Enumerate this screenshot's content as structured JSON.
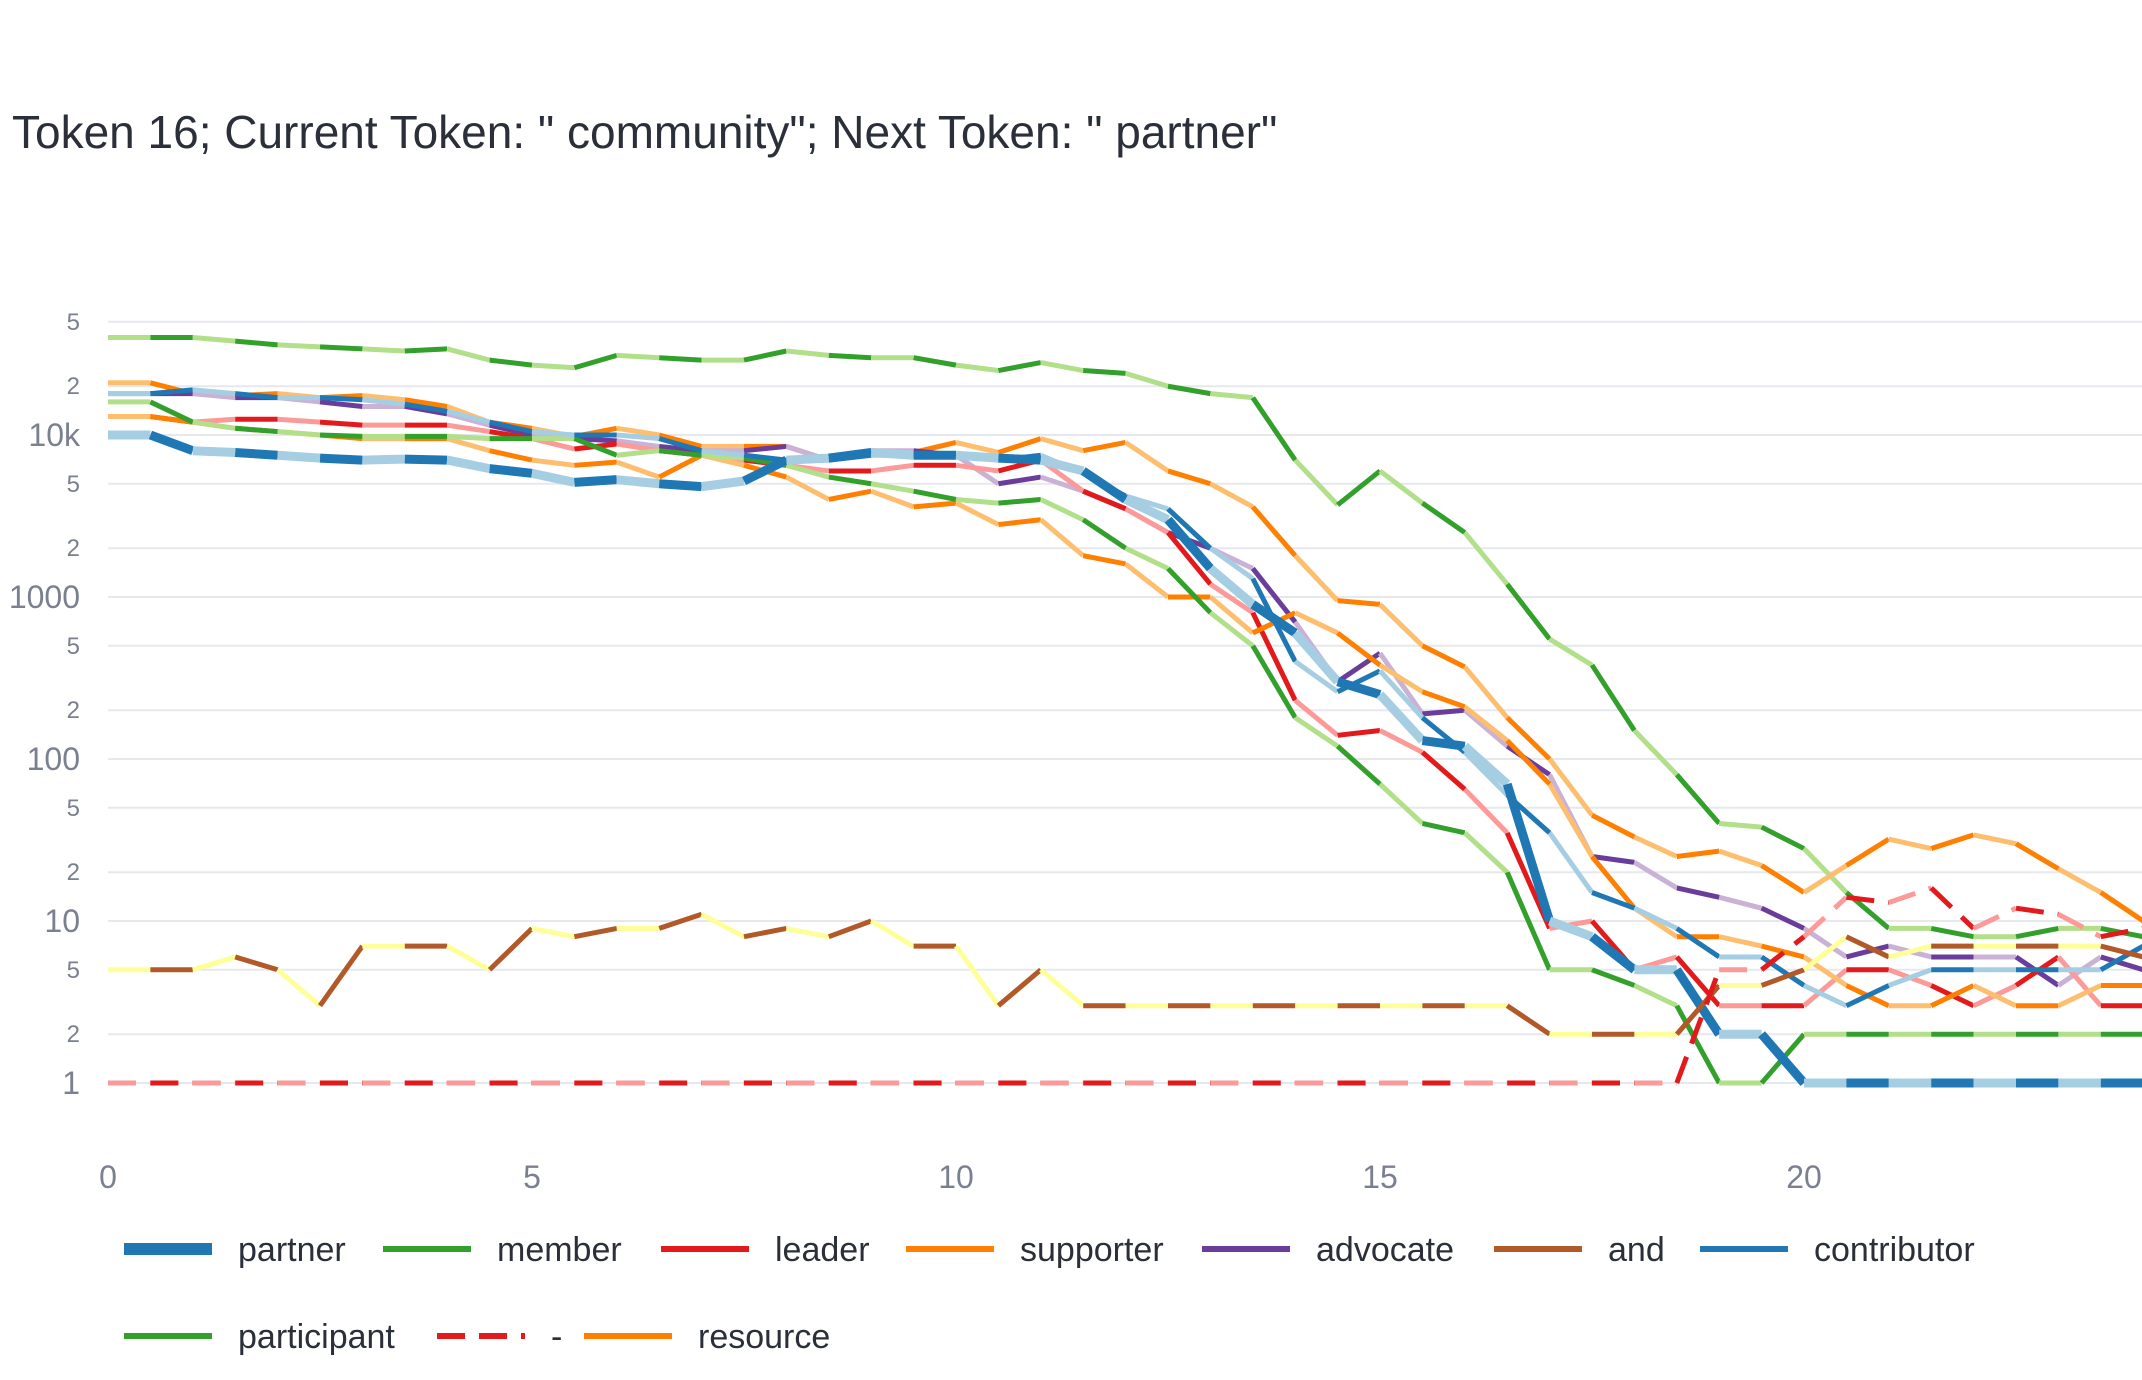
{
  "chart_data": {
    "type": "line",
    "title": "Token 16; Current Token: \" community\"; Next Token: \" partner\"",
    "xlabel": "",
    "ylabel": "",
    "yscale": "log",
    "xlim": [
      0,
      24
    ],
    "ylim": [
      1,
      50000
    ],
    "x_ticks": [
      0,
      5,
      10,
      15,
      20
    ],
    "y_major_ticks": [
      {
        "value": 1,
        "label": "1"
      },
      {
        "value": 10,
        "label": "10"
      },
      {
        "value": 100,
        "label": "100"
      },
      {
        "value": 1000,
        "label": "1000"
      },
      {
        "value": 10000,
        "label": "10k"
      }
    ],
    "y_minor_ticks": [
      {
        "value": 2,
        "label": "2"
      },
      {
        "value": 5,
        "label": "5"
      },
      {
        "value": 20,
        "label": "2"
      },
      {
        "value": 50,
        "label": "5"
      },
      {
        "value": 200,
        "label": "2"
      },
      {
        "value": 500,
        "label": "5"
      },
      {
        "value": 2000,
        "label": "2"
      },
      {
        "value": 5000,
        "label": "5"
      },
      {
        "value": 20000,
        "label": "2"
      },
      {
        "value": 50000,
        "label": "5"
      }
    ],
    "grid": true,
    "legend_position": "bottom",
    "x": [
      0,
      0.5,
      1,
      1.5,
      2,
      2.5,
      3,
      3.5,
      4,
      4.5,
      5,
      5.5,
      6,
      6.5,
      7,
      7.5,
      8,
      8.5,
      9,
      9.5,
      10,
      10.5,
      11,
      11.5,
      12,
      12.5,
      13,
      13.5,
      14,
      14.5,
      15,
      15.5,
      16,
      16.5,
      17,
      17.5,
      18,
      18.5,
      19,
      19.5,
      20,
      20.5,
      21,
      21.5,
      22,
      22.5,
      23,
      23.5,
      24
    ],
    "series": [
      {
        "name": "partner",
        "color": "#1f78b4",
        "light_color": "#a6cee3",
        "width": 9,
        "dashed": false,
        "values": [
          10000,
          10000,
          8000,
          7800,
          7500,
          7200,
          7000,
          7100,
          7000,
          6200,
          5800,
          5100,
          5300,
          5000,
          4800,
          5200,
          7000,
          7200,
          7800,
          7500,
          7500,
          7200,
          7000,
          6000,
          4000,
          3000,
          1500,
          900,
          600,
          300,
          250,
          130,
          120,
          70,
          10,
          8,
          5,
          5,
          2,
          2,
          1,
          1,
          1,
          1,
          1,
          1,
          1,
          1,
          1
        ]
      },
      {
        "name": "member",
        "color": "#33a02c",
        "light_color": "#b2df8a",
        "width": 5,
        "dashed": false,
        "values": [
          16000,
          16000,
          12000,
          11000,
          10500,
          10000,
          9800,
          9800,
          9800,
          9500,
          9500,
          9500,
          7500,
          8000,
          7500,
          7200,
          6500,
          5500,
          5000,
          4500,
          4000,
          3800,
          4000,
          3000,
          2000,
          1500,
          800,
          500,
          180,
          120,
          70,
          40,
          35,
          20,
          5,
          5,
          4,
          3,
          1,
          1,
          2,
          2,
          2,
          2,
          2,
          2,
          2,
          2,
          2
        ]
      },
      {
        "name": "leader",
        "color": "#e31a1c",
        "light_color": "#fb9a99",
        "width": 5,
        "dashed": false,
        "values": [
          13000,
          13000,
          12000,
          12500,
          12500,
          12000,
          11500,
          11500,
          11500,
          10500,
          9500,
          8200,
          8800,
          8000,
          7500,
          7000,
          6500,
          6000,
          6000,
          6500,
          6500,
          6000,
          7000,
          4500,
          3500,
          2500,
          1200,
          800,
          230,
          140,
          150,
          110,
          65,
          35,
          9,
          10,
          5,
          6,
          3,
          3,
          3,
          5,
          5,
          4,
          3,
          4,
          6,
          3,
          3
        ]
      },
      {
        "name": "supporter",
        "color": "#ff7f00",
        "light_color": "#fdbf6f",
        "width": 5,
        "dashed": false,
        "values": [
          13000,
          13000,
          12000,
          11000,
          10500,
          10000,
          9500,
          9500,
          9500,
          8000,
          7000,
          6500,
          6800,
          5500,
          7500,
          6500,
          5500,
          4000,
          4500,
          3600,
          3800,
          2800,
          3000,
          1800,
          1600,
          1000,
          1000,
          600,
          800,
          600,
          380,
          260,
          210,
          130,
          70,
          25,
          12,
          8,
          8,
          7,
          6,
          4,
          3,
          3,
          4,
          3,
          3,
          4,
          4
        ]
      },
      {
        "name": "advocate",
        "color": "#6a3d9a",
        "light_color": "#cab2d6",
        "width": 5,
        "dashed": false,
        "values": [
          18000,
          18000,
          18000,
          17000,
          17000,
          16000,
          15000,
          15000,
          13500,
          11500,
          10000,
          9500,
          9200,
          8500,
          8000,
          8000,
          8500,
          7000,
          8000,
          8000,
          7500,
          5000,
          5500,
          4500,
          3500,
          2500,
          2000,
          1500,
          700,
          300,
          450,
          190,
          200,
          120,
          80,
          25,
          23,
          16,
          14,
          12,
          9,
          6,
          7,
          6,
          6,
          6,
          4,
          6,
          5
        ]
      },
      {
        "name": "and",
        "color": "#b15928",
        "light_color": "#ffff99",
        "width": 5,
        "dashed": false,
        "values": [
          5,
          5,
          5,
          6,
          5,
          3,
          7,
          7,
          7,
          5,
          9,
          8,
          9,
          9,
          11,
          8,
          9,
          8,
          10,
          7,
          7,
          3,
          5,
          3,
          3,
          3,
          3,
          3,
          3,
          3,
          3,
          3,
          3,
          3,
          2,
          2,
          2,
          2,
          4,
          4,
          5,
          8,
          6,
          7,
          7,
          7,
          7,
          7,
          6
        ]
      },
      {
        "name": "contributor",
        "color": "#1f78b4",
        "light_color": "#a6cee3",
        "width": 5,
        "dashed": false,
        "values": [
          18000,
          18000,
          19000,
          18000,
          17000,
          17000,
          16500,
          15500,
          14000,
          12000,
          10500,
          10000,
          10000,
          9500,
          8000,
          7500,
          7000,
          7000,
          7500,
          7500,
          7500,
          7000,
          7500,
          5800,
          4200,
          3500,
          2000,
          1300,
          400,
          260,
          350,
          180,
          110,
          60,
          35,
          15,
          12,
          9,
          6,
          6,
          4,
          3,
          4,
          5,
          5,
          5,
          5,
          5,
          7
        ]
      },
      {
        "name": "participant",
        "color": "#33a02c",
        "light_color": "#b2df8a",
        "width": 5,
        "dashed": false,
        "values": [
          40000,
          40000,
          40000,
          38000,
          36000,
          35000,
          34000,
          33000,
          34000,
          29000,
          27000,
          26000,
          31000,
          30000,
          29000,
          29000,
          33000,
          31000,
          30000,
          30000,
          27000,
          25000,
          28000,
          25000,
          24000,
          20000,
          18000,
          17000,
          7000,
          3700,
          6000,
          3800,
          2500,
          1200,
          550,
          380,
          150,
          80,
          40,
          38,
          28,
          15,
          9,
          9,
          8,
          8,
          9,
          9,
          8
        ]
      },
      {
        "name": "-",
        "color": "#e31a1c",
        "light_color": "#fb9a99",
        "width": 5,
        "dashed": true,
        "values": [
          1,
          1,
          1,
          1,
          1,
          1,
          1,
          1,
          1,
          1,
          1,
          1,
          1,
          1,
          1,
          1,
          1,
          1,
          1,
          1,
          1,
          1,
          1,
          1,
          1,
          1,
          1,
          1,
          1,
          1,
          1,
          1,
          1,
          1,
          1,
          1,
          1,
          1,
          5,
          5,
          8,
          14,
          13,
          16,
          9,
          12,
          11,
          8,
          9
        ]
      },
      {
        "name": "resource",
        "color": "#ff7f00",
        "light_color": "#fdbf6f",
        "width": 5,
        "dashed": false,
        "values": [
          21000,
          21000,
          18000,
          17500,
          18000,
          17000,
          17500,
          16500,
          15000,
          12000,
          11000,
          9800,
          11000,
          10000,
          8500,
          8500,
          8500,
          7000,
          8000,
          7800,
          9000,
          7800,
          9500,
          8000,
          9000,
          6000,
          5000,
          3600,
          1800,
          950,
          900,
          500,
          370,
          180,
          100,
          45,
          33,
          25,
          27,
          22,
          15,
          22,
          32,
          28,
          34,
          30,
          21,
          15,
          10
        ]
      }
    ]
  }
}
